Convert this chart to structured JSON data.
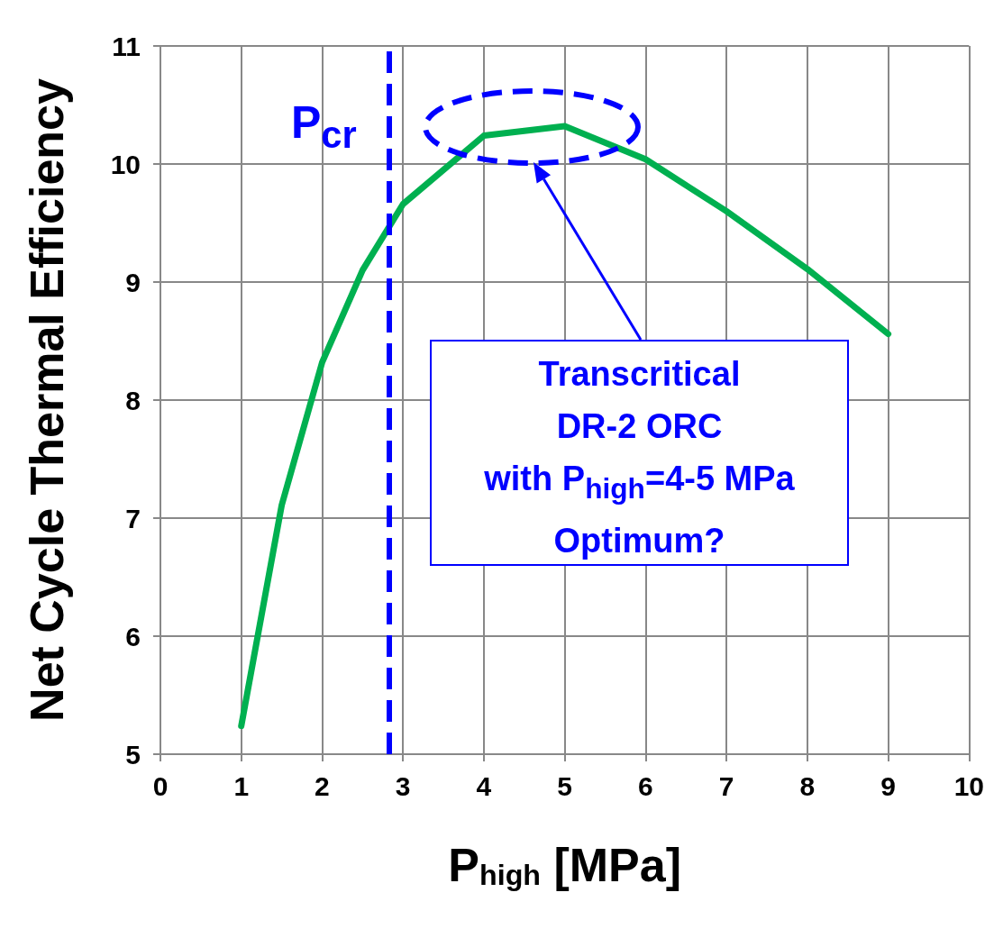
{
  "chart_data": {
    "type": "line",
    "xlabel": "P$_{high}$ [MPa]",
    "ylabel": "Net Cycle Thermal Efficiency",
    "x": [
      1,
      1.5,
      2,
      2.5,
      3,
      4,
      5,
      6,
      7,
      8,
      9
    ],
    "series": [
      {
        "color": "#00b050",
        "values": [
          5.24,
          7.11,
          8.32,
          9.1,
          9.66,
          10.24,
          10.32,
          10.04,
          9.6,
          9.11,
          8.56
        ]
      }
    ],
    "xlim": [
      0,
      10
    ],
    "xticks": [
      0,
      1,
      2,
      3,
      4,
      5,
      6,
      7,
      8,
      9,
      10
    ],
    "ylim": [
      5,
      11
    ],
    "yticks": [
      5,
      6,
      7,
      8,
      9,
      10,
      11
    ],
    "grid": true,
    "marker": "none",
    "line_style": "solid",
    "ref_lines": [
      {
        "axis": "x",
        "value": 2.83,
        "label": "P$_{cr}$",
        "color": "#0000ff",
        "line_style": "dashed"
      }
    ],
    "annotations": [
      "Transcritical\nDR-2 ORC\nwith P$_{high}$=4-5 MPa\nOptimum?"
    ]
  }
}
